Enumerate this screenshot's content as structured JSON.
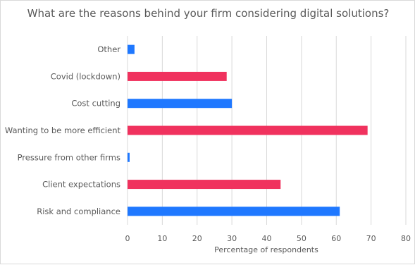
{
  "chart_data": {
    "type": "bar",
    "orientation": "horizontal",
    "title": "What are the reasons behind your firm considering digital solutions?",
    "xlabel": "Percentage of respondents",
    "ylabel": "",
    "xlim": [
      0,
      80
    ],
    "xticks": [
      0,
      10,
      20,
      30,
      40,
      50,
      60,
      70,
      80
    ],
    "grid": true,
    "legend": "none",
    "categories": [
      "Other",
      "Covid (lockdown)",
      "Cost cutting",
      "Wanting to be more efficient",
      "Pressure from other firms",
      "Client expectations",
      "Risk and compliance"
    ],
    "values": [
      2,
      28.5,
      30,
      69,
      0.6,
      44,
      61
    ],
    "colors": [
      "#1f78ff",
      "#f0325e",
      "#1f78ff",
      "#f0325e",
      "#1f78ff",
      "#f0325e",
      "#1f78ff"
    ],
    "gridColor": "#d9d9d9",
    "textColor": "#595959"
  }
}
